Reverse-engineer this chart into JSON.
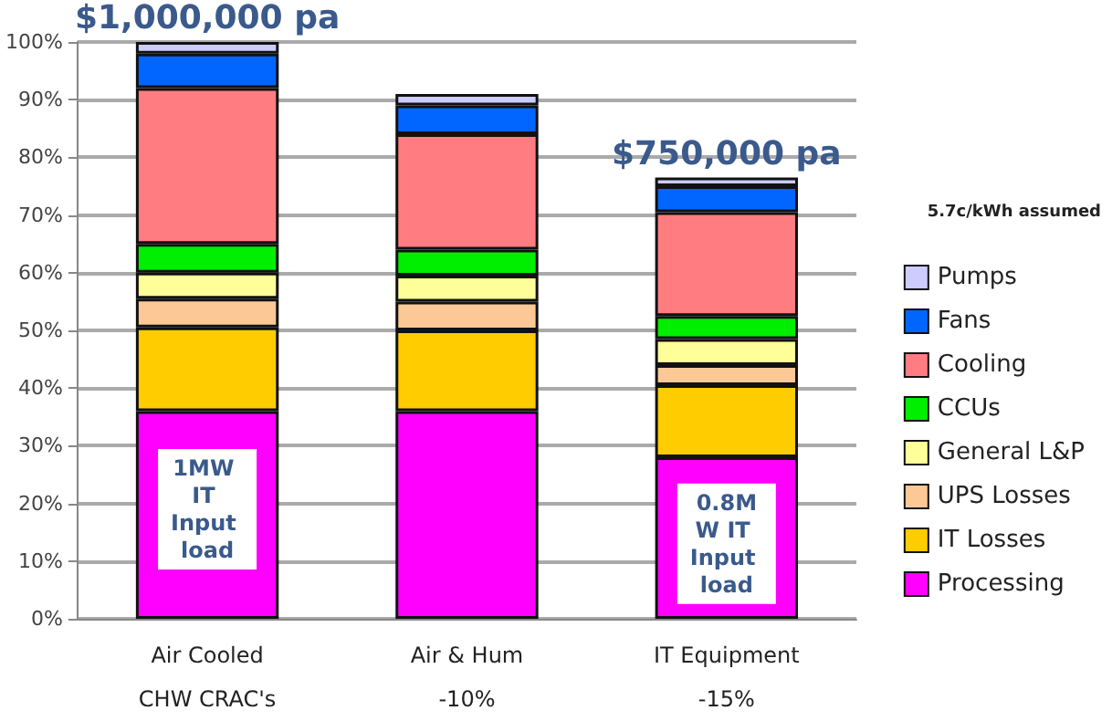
{
  "chart_data": {
    "type": "bar",
    "stacked": true,
    "categories": [
      "Air Cooled\nCHW CRAC's",
      "Air & Hum\n-10%",
      "IT Equipment\n-15%"
    ],
    "series": [
      {
        "name": "Processing",
        "color": "#ff00ff",
        "values": [
          36,
          36,
          28
        ]
      },
      {
        "name": "IT Losses",
        "color": "#ffcc00",
        "values": [
          14.5,
          14,
          12.5
        ]
      },
      {
        "name": "UPS Losses",
        "color": "#fcc896",
        "values": [
          5,
          5,
          3.5
        ]
      },
      {
        "name": "General L&P",
        "color": "#ffff99",
        "values": [
          4.5,
          4.5,
          4.5
        ]
      },
      {
        "name": "CCUs",
        "color": "#00ee00",
        "values": [
          5,
          4.5,
          4
        ]
      },
      {
        "name": "Cooling",
        "color": "#ff7c80",
        "values": [
          27,
          20,
          18
        ]
      },
      {
        "name": "Fans",
        "color": "#0066ff",
        "values": [
          6,
          5,
          4.5
        ]
      },
      {
        "name": "Pumps",
        "color": "#ccccff",
        "values": [
          2,
          2,
          1.5
        ]
      }
    ],
    "ylim": [
      0,
      100
    ],
    "yticks": [
      {
        "value": 0,
        "label": "0%"
      },
      {
        "value": 10,
        "label": "10%"
      },
      {
        "value": 20,
        "label": "20%"
      },
      {
        "value": 30,
        "label": "30%"
      },
      {
        "value": 40,
        "label": "40%"
      },
      {
        "value": 50,
        "label": "50%"
      },
      {
        "value": 60,
        "label": "60%"
      },
      {
        "value": 70,
        "label": "70%"
      },
      {
        "value": 80,
        "label": "80%"
      },
      {
        "value": 90,
        "label": "90%"
      },
      {
        "value": 100,
        "label": "100%"
      }
    ],
    "grid": "y",
    "legend": "right",
    "annotations": [
      {
        "text": "$1,000,000 pa",
        "x": "Air Cooled\nCHW CRAC's",
        "y": 100
      },
      {
        "text": "$750,000 pa",
        "x": "IT Equipment\n-15%",
        "y": 76.5
      },
      "1MW IT Input load",
      "0.8MW IT Input load",
      "5.7c/kWh assumed"
    ]
  }
}
